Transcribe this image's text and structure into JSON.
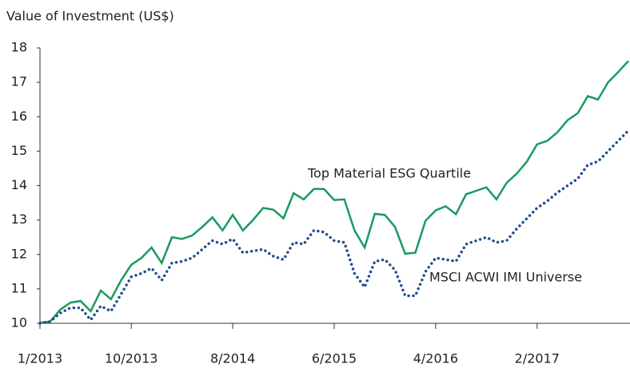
{
  "chart_data": {
    "type": "line",
    "y_label": "Value of Investment (US$)",
    "categories": [
      "1/2013",
      null,
      null,
      null,
      null,
      null,
      null,
      null,
      null,
      "10/2013",
      null,
      null,
      null,
      null,
      null,
      null,
      null,
      null,
      null,
      "8/2014",
      null,
      null,
      null,
      null,
      null,
      null,
      null,
      null,
      null,
      "6/2015",
      null,
      null,
      null,
      null,
      null,
      null,
      null,
      null,
      null,
      "4/2016",
      null,
      null,
      null,
      null,
      null,
      null,
      null,
      null,
      null,
      "2/2017",
      null,
      null,
      null,
      null,
      null,
      null,
      null,
      null,
      null
    ],
    "series": [
      {
        "name": "Top Material ESG Quartile",
        "color": "#1a9a5f",
        "style": "solid",
        "values": [
          10.02,
          10.05,
          10.4,
          10.6,
          10.65,
          10.35,
          10.95,
          10.7,
          11.25,
          11.7,
          11.9,
          12.2,
          11.75,
          12.5,
          12.45,
          12.55,
          12.8,
          13.08,
          12.7,
          13.15,
          12.7,
          13.0,
          13.35,
          13.3,
          13.05,
          13.78,
          13.6,
          13.9,
          13.9,
          13.58,
          13.6,
          12.7,
          12.2,
          13.18,
          13.15,
          12.8,
          12.02,
          12.05,
          12.98,
          13.28,
          13.4,
          13.17,
          13.75,
          13.85,
          13.95,
          13.6,
          14.08,
          14.35,
          14.7,
          15.2,
          15.3,
          15.55,
          15.9,
          16.1,
          16.6,
          16.5,
          17.0,
          17.3,
          17.62
        ]
      },
      {
        "name": "MSCI ACWI IMI Universe",
        "color": "#1f4e8c",
        "style": "dotted",
        "values": [
          10.0,
          10.05,
          10.3,
          10.45,
          10.45,
          10.1,
          10.5,
          10.35,
          10.85,
          11.35,
          11.45,
          11.6,
          11.25,
          11.75,
          11.8,
          11.9,
          12.15,
          12.4,
          12.3,
          12.45,
          12.05,
          12.1,
          12.15,
          11.95,
          11.85,
          12.35,
          12.3,
          12.7,
          12.65,
          12.4,
          12.35,
          11.45,
          11.05,
          11.8,
          11.85,
          11.55,
          10.8,
          10.8,
          11.5,
          11.9,
          11.85,
          11.8,
          12.3,
          12.4,
          12.5,
          12.35,
          12.4,
          12.75,
          13.05,
          13.35,
          13.55,
          13.8,
          14.0,
          14.2,
          14.6,
          14.7,
          15.0,
          15.3,
          15.6
        ]
      }
    ],
    "ylim": [
      10,
      18
    ],
    "yticks": [
      10,
      11,
      12,
      13,
      14,
      15,
      16,
      17,
      18
    ],
    "grid": false
  }
}
